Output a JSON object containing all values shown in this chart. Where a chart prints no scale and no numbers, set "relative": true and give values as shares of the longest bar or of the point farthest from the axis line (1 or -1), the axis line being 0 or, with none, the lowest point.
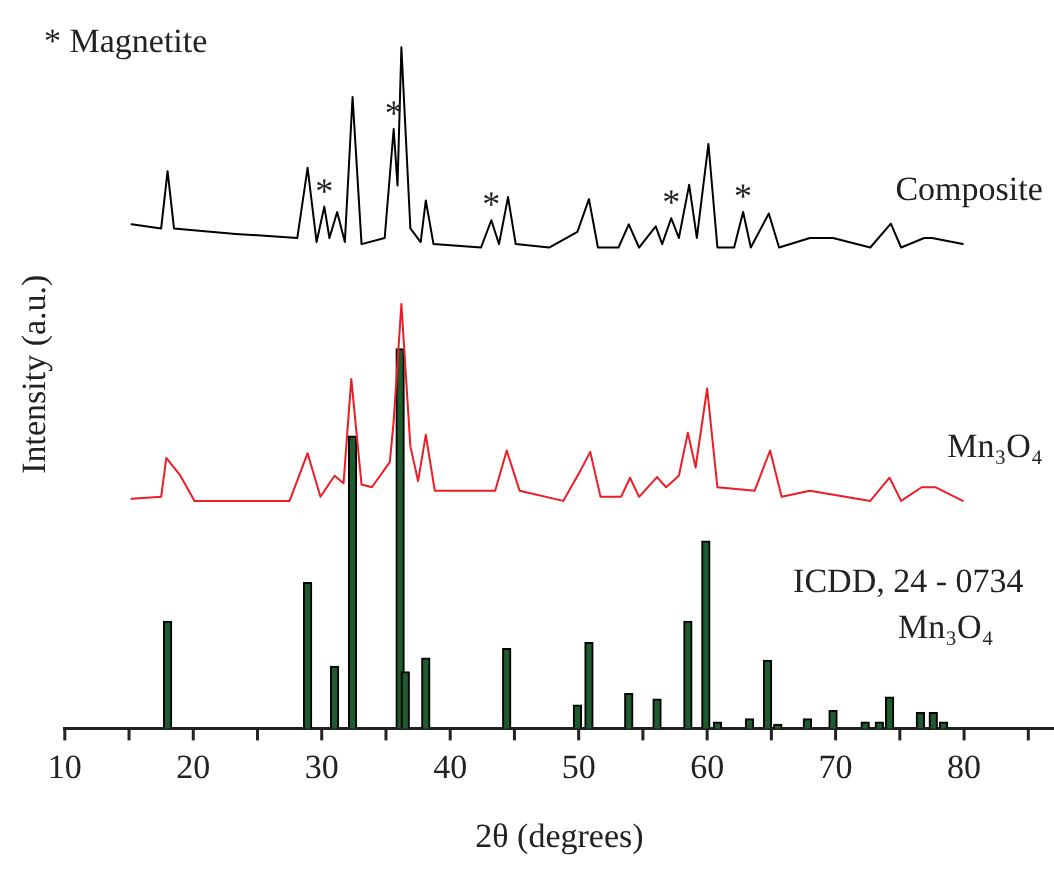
{
  "chart_data": {
    "type": "line",
    "xlabel": "2θ (degrees)",
    "ylabel": "Intensity (a.u.)",
    "relative": true,
    "xlim": [
      10,
      87
    ],
    "xticks": [
      10,
      {
        "value": 15,
        "label": null
      },
      20,
      {
        "value": 25,
        "label": null
      },
      30,
      {
        "value": 35,
        "label": null
      },
      40,
      {
        "value": 45,
        "label": null
      },
      50,
      {
        "value": 55,
        "label": null
      },
      60,
      {
        "value": 65,
        "label": null
      },
      70,
      {
        "value": 75,
        "label": null
      },
      80,
      {
        "value": 85,
        "label": null
      }
    ],
    "grid": false,
    "legend": false,
    "marker": "none",
    "line_style": "solid",
    "series": [
      {
        "name": "Composite",
        "color": "#000000",
        "x": [
          15.2,
          17.5,
          18.0,
          18.5,
          23.3,
          28.1,
          28.9,
          29.6,
          30.2,
          30.6,
          31.2,
          31.8,
          32.4,
          33.1,
          34.9,
          35.6,
          35.9,
          36.2,
          36.9,
          37.7,
          38.1,
          38.7,
          42.4,
          43.2,
          43.8,
          44.5,
          45.1,
          47.7,
          49.9,
          50.8,
          51.5,
          53.1,
          53.9,
          54.7,
          56.0,
          56.5,
          57.2,
          57.8,
          58.6,
          59.2,
          60.1,
          60.8,
          62.1,
          62.8,
          63.4,
          64.8,
          65.6,
          68.0,
          69.8,
          72.7,
          74.3,
          75.1,
          76.9,
          77.5,
          79.9
        ],
        "values": [
          0.74,
          0.734,
          0.818,
          0.734,
          0.726,
          0.72,
          0.823,
          0.714,
          0.766,
          0.72,
          0.758,
          0.714,
          0.927,
          0.711,
          0.72,
          0.88,
          0.797,
          1,
          0.734,
          0.714,
          0.775,
          0.711,
          0.706,
          0.746,
          0.711,
          0.78,
          0.711,
          0.706,
          0.729,
          0.777,
          0.706,
          0.706,
          0.74,
          0.706,
          0.737,
          0.711,
          0.749,
          0.72,
          0.798,
          0.72,
          0.858,
          0.706,
          0.706,
          0.758,
          0.706,
          0.756,
          0.706,
          0.72,
          0.72,
          0.706,
          0.741,
          0.706,
          0.72,
          0.72,
          0.711
        ]
      },
      {
        "name": "Mn₃O₄",
        "color": "#ee1c24",
        "x": [
          15.2,
          17.5,
          17.9,
          19.0,
          20.1,
          27.5,
          28.9,
          29.9,
          31.0,
          31.7,
          32.3,
          33.1,
          33.9,
          35.3,
          35.6,
          36.2,
          36.9,
          37.5,
          38.1,
          38.8,
          43.5,
          44.4,
          45.4,
          48.8,
          50.1,
          50.9,
          51.7,
          53.3,
          54.0,
          54.7,
          56.1,
          56.8,
          57.8,
          58.5,
          59.1,
          60.0,
          60.8,
          63.7,
          64.9,
          65.8,
          68.0,
          72.7,
          74.2,
          75.1,
          76.7,
          77.8,
          79.9
        ],
        "values": [
          0.337,
          0.34,
          0.397,
          0.371,
          0.334,
          0.334,
          0.404,
          0.34,
          0.371,
          0.36,
          0.513,
          0.358,
          0.354,
          0.391,
          0.451,
          0.623,
          0.414,
          0.363,
          0.431,
          0.349,
          0.349,
          0.408,
          0.349,
          0.334,
          0.377,
          0.406,
          0.34,
          0.34,
          0.368,
          0.34,
          0.369,
          0.354,
          0.371,
          0.434,
          0.383,
          0.499,
          0.354,
          0.349,
          0.408,
          0.34,
          0.349,
          0.334,
          0.368,
          0.334,
          0.354,
          0.354,
          0.334
        ]
      },
      {
        "name": "ICDD, 24 - 0734 Mn₃O₄",
        "type": "bar",
        "color": "#1e5b2e",
        "x": [
          18.0,
          28.9,
          31.0,
          32.4,
          36.1,
          36.5,
          38.1,
          44.4,
          49.9,
          50.8,
          53.9,
          56.1,
          58.5,
          59.9,
          60.8,
          63.3,
          64.7,
          65.5,
          67.8,
          69.8,
          72.3,
          73.4,
          74.2,
          76.6,
          77.6,
          78.4
        ],
        "values": [
          0.157,
          0.214,
          0.091,
          0.429,
          0.557,
          0.083,
          0.103,
          0.117,
          0.034,
          0.126,
          0.051,
          0.043,
          0.157,
          0.275,
          0.009,
          0.014,
          0.1,
          0.006,
          0.014,
          0.026,
          0.009,
          0.009,
          0.046,
          0.023,
          0.023,
          0.009
        ]
      }
    ],
    "annotations": [
      "* Magnetite",
      {
        "text": "*",
        "x": 30.2,
        "y": 0.766
      },
      {
        "text": "*",
        "x": 35.6,
        "y": 0.88
      },
      {
        "text": "*",
        "x": 43.2,
        "y": 0.746
      },
      {
        "text": "*",
        "x": 57.2,
        "y": 0.749
      },
      {
        "text": "*",
        "x": 62.8,
        "y": 0.758
      }
    ]
  }
}
